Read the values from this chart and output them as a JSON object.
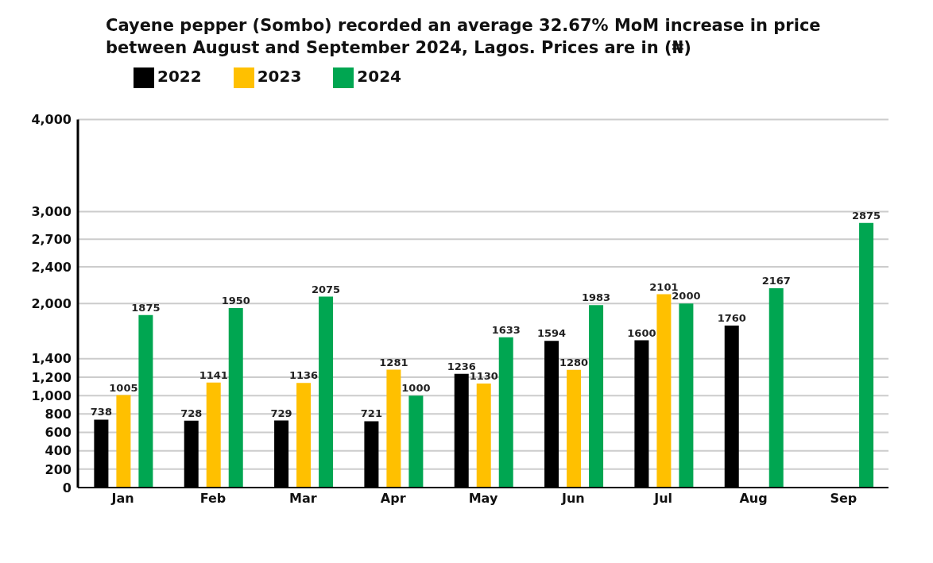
{
  "chart_data": {
    "type": "bar",
    "title": "Cayene pepper (Sombo) recorded an average 32.67% MoM increase in price between August and September 2024, Lagos. Prices are in (₦)",
    "categories": [
      "Jan",
      "Feb",
      "Mar",
      "Apr",
      "May",
      "Jun",
      "Jul",
      "Aug",
      "Sep"
    ],
    "series": [
      {
        "name": "2022",
        "color": "#000000",
        "values": [
          738,
          728,
          729,
          721,
          1236,
          1594,
          1600,
          1760,
          null
        ]
      },
      {
        "name": "2023",
        "color": "#ffc000",
        "values": [
          1005,
          1141,
          1136,
          1281,
          1130,
          1280,
          2101,
          null,
          null
        ]
      },
      {
        "name": "2024",
        "color": "#00a651",
        "values": [
          1875,
          1950,
          2075,
          1000,
          1633,
          1983,
          2000,
          2167,
          2875
        ]
      }
    ],
    "ylim": [
      0,
      4000
    ],
    "yticks": [
      0,
      200,
      400,
      600,
      800,
      {
        "value": 1000,
        "label": "1,000"
      },
      {
        "value": 1200,
        "label": "1,200"
      },
      {
        "value": 1400,
        "label": "1,400"
      },
      {
        "value": 2000,
        "label": "2,000"
      },
      {
        "value": 2400,
        "label": "2,400"
      },
      {
        "value": 2700,
        "label": "2,700"
      },
      {
        "value": 3000,
        "label": "3,000"
      },
      {
        "value": 4000,
        "label": "4,000"
      }
    ],
    "grid": "y",
    "legend": "top left",
    "data_labels": true
  }
}
